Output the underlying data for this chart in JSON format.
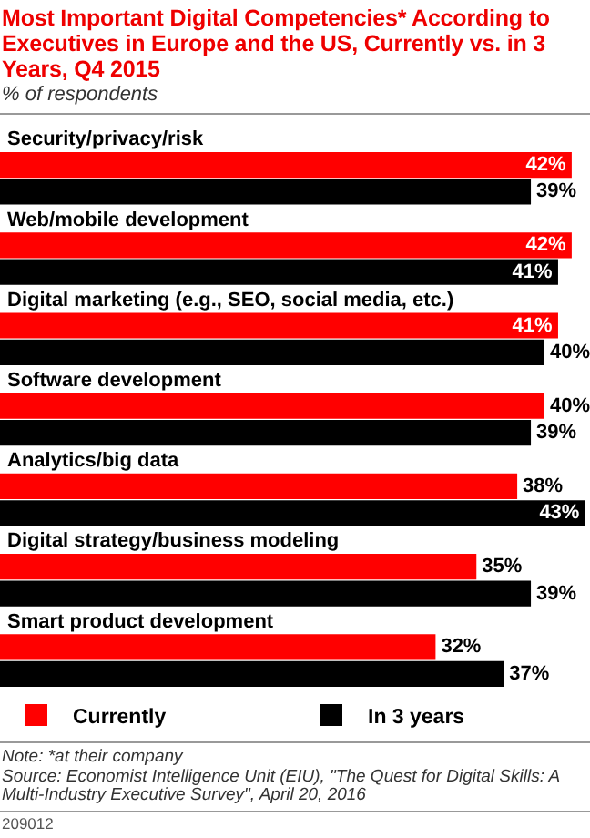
{
  "chart_data": {
    "type": "bar",
    "orientation": "horizontal",
    "title": "Most Important Digital Competencies* According to Executives in Europe and the US, Currently vs. in 3 Years, Q4 2015",
    "subtitle": "% of respondents",
    "categories": [
      "Security/privacy/risk",
      "Web/mobile development",
      "Digital marketing (e.g., SEO, social media, etc.)",
      "Software development",
      "Analytics/big data",
      "Digital strategy/business modeling",
      "Smart product development"
    ],
    "series": [
      {
        "name": "Currently",
        "color": "#ff0000",
        "values": [
          42,
          42,
          41,
          40,
          38,
          35,
          32
        ],
        "value_labels": [
          "42%",
          "42%",
          "41%",
          "40%",
          "38%",
          "35%",
          "32%"
        ]
      },
      {
        "name": "In 3 years",
        "color": "#000000",
        "values": [
          39,
          41,
          40,
          39,
          43,
          39,
          37
        ],
        "value_labels": [
          "39%",
          "41%",
          "40%",
          "39%",
          "43%",
          "39%",
          "37%"
        ]
      }
    ],
    "legend": "bottom",
    "tick_labels": "y",
    "annotations": [
      "Note: *at their company",
      "Source: Economist Intelligence Unit (EIU), \"The Quest for Digital Skills: A Multi-Industry Executive Survey\", April 20, 2016",
      "209012"
    ]
  }
}
